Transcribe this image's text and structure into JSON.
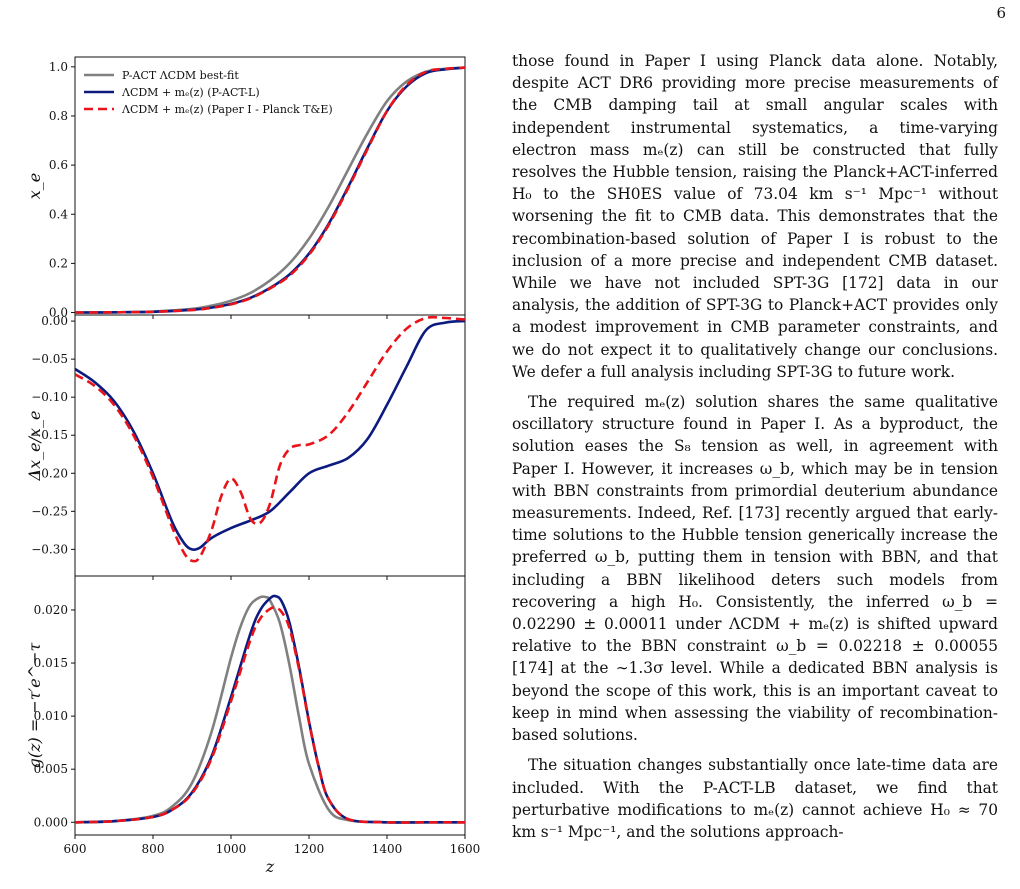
{
  "page_number": "6",
  "figure": {
    "legend": [
      {
        "label": "P-ACT ΛCDM best-fit",
        "color": "#808080",
        "dash": "solid"
      },
      {
        "label": "ΛCDM + mₑ(z) (P-ACT-L)",
        "color": "#0d1a80",
        "dash": "solid"
      },
      {
        "label": "ΛCDM + mₑ(z) (Paper I - Planck T&E)",
        "color": "#e8141a",
        "dash": "dashed"
      }
    ],
    "x_label": "z",
    "panels": [
      {
        "ylabel": "x_e",
        "ylim": [
          -0.01,
          1.04
        ],
        "yticks": [
          "0.0",
          "0.2",
          "0.4",
          "0.6",
          "0.8",
          "1.0"
        ],
        "ytick_values": [
          0,
          0.2,
          0.4,
          0.6,
          0.8,
          1.0
        ]
      },
      {
        "ylabel": "Δx_e/x_e",
        "ylim": [
          -0.335,
          0.008
        ],
        "yticks": [
          "−0.30",
          "−0.25",
          "−0.20",
          "−0.15",
          "−0.10",
          "−0.05",
          "0.00"
        ],
        "ytick_values": [
          -0.3,
          -0.25,
          -0.2,
          -0.15,
          -0.1,
          -0.05,
          0.0
        ]
      },
      {
        "ylabel": "g(z) = −τ′e^−τ",
        "ylim": [
          -0.0012,
          0.0232
        ],
        "yticks": [
          "0.000",
          "0.005",
          "0.010",
          "0.015",
          "0.020"
        ],
        "ytick_values": [
          0,
          0.005,
          0.01,
          0.015,
          0.02
        ]
      }
    ],
    "xticks": [
      "600",
      "800",
      "1000",
      "1200",
      "1400",
      "1600"
    ],
    "xtick_values": [
      600,
      800,
      1000,
      1200,
      1400,
      1600
    ]
  },
  "chart_data": [
    {
      "type": "line",
      "ylabel": "x_e",
      "xlim": [
        600,
        1600
      ],
      "ylim": [
        -0.01,
        1.04
      ],
      "legend_position": "top-left",
      "series": [
        {
          "name": "P-ACT ΛCDM best-fit",
          "color": "#808080",
          "x": [
            600,
            700,
            800,
            900,
            950,
            1000,
            1050,
            1100,
            1150,
            1200,
            1250,
            1300,
            1350,
            1400,
            1450,
            1500,
            1550,
            1600
          ],
          "y": [
            0.0,
            0.001,
            0.004,
            0.015,
            0.028,
            0.048,
            0.08,
            0.13,
            0.2,
            0.3,
            0.43,
            0.58,
            0.73,
            0.86,
            0.94,
            0.98,
            0.992,
            0.997
          ]
        },
        {
          "name": "ΛCDM + mₑ(z) (P-ACT-L)",
          "color": "#0d1a80",
          "x": [
            600,
            700,
            800,
            900,
            950,
            1000,
            1050,
            1100,
            1150,
            1200,
            1250,
            1300,
            1350,
            1400,
            1450,
            1500,
            1550,
            1600
          ],
          "y": [
            0.0,
            0.0008,
            0.003,
            0.011,
            0.02,
            0.035,
            0.06,
            0.1,
            0.155,
            0.24,
            0.36,
            0.51,
            0.67,
            0.82,
            0.92,
            0.975,
            0.99,
            0.997
          ]
        },
        {
          "name": "ΛCDM + mₑ(z) (Paper I - Planck T&E)",
          "color": "#e8141a",
          "x": [
            600,
            700,
            800,
            900,
            950,
            1000,
            1050,
            1100,
            1150,
            1200,
            1250,
            1300,
            1350,
            1400,
            1450,
            1500,
            1550,
            1600
          ],
          "y": [
            0.0,
            0.0008,
            0.003,
            0.01,
            0.019,
            0.033,
            0.058,
            0.098,
            0.15,
            0.235,
            0.355,
            0.505,
            0.665,
            0.82,
            0.925,
            0.98,
            0.992,
            0.997
          ]
        }
      ]
    },
    {
      "type": "line",
      "ylabel": "Δx_e/x_e",
      "xlim": [
        600,
        1600
      ],
      "ylim": [
        -0.335,
        0.008
      ],
      "series": [
        {
          "name": "ΛCDM + mₑ(z) (P-ACT-L)",
          "color": "#0d1a80",
          "x": [
            600,
            650,
            700,
            750,
            800,
            850,
            880,
            900,
            920,
            950,
            1000,
            1050,
            1100,
            1150,
            1200,
            1250,
            1300,
            1350,
            1400,
            1450,
            1500,
            1550,
            1600
          ],
          "y": [
            -0.063,
            -0.08,
            -0.105,
            -0.145,
            -0.2,
            -0.265,
            -0.292,
            -0.3,
            -0.298,
            -0.285,
            -0.272,
            -0.262,
            -0.25,
            -0.225,
            -0.2,
            -0.19,
            -0.18,
            -0.155,
            -0.11,
            -0.06,
            -0.012,
            -0.002,
            0.0
          ]
        },
        {
          "name": "ΛCDM + mₑ(z) (Paper I - Planck T&E)",
          "color": "#e8141a",
          "x": [
            600,
            650,
            700,
            750,
            800,
            850,
            880,
            900,
            920,
            950,
            975,
            1000,
            1025,
            1050,
            1075,
            1100,
            1125,
            1150,
            1175,
            1200,
            1250,
            1300,
            1350,
            1400,
            1450,
            1500,
            1550,
            1600
          ],
          "y": [
            -0.07,
            -0.085,
            -0.11,
            -0.15,
            -0.205,
            -0.272,
            -0.305,
            -0.315,
            -0.31,
            -0.275,
            -0.23,
            -0.207,
            -0.225,
            -0.26,
            -0.265,
            -0.24,
            -0.19,
            -0.168,
            -0.163,
            -0.162,
            -0.15,
            -0.12,
            -0.08,
            -0.04,
            -0.01,
            0.004,
            0.004,
            0.002
          ]
        }
      ]
    },
    {
      "type": "line",
      "ylabel": "g(z) = −τ′e^−τ",
      "xlabel": "z",
      "xlim": [
        600,
        1600
      ],
      "ylim": [
        -0.0012,
        0.0232
      ],
      "series": [
        {
          "name": "P-ACT ΛCDM best-fit",
          "color": "#808080",
          "x": [
            600,
            700,
            800,
            850,
            900,
            950,
            1000,
            1025,
            1050,
            1075,
            1090,
            1100,
            1125,
            1150,
            1175,
            1200,
            1250,
            1300,
            1400,
            1500,
            1600
          ],
          "y": [
            0.0,
            0.0001,
            0.0006,
            0.0015,
            0.0037,
            0.0085,
            0.0155,
            0.0185,
            0.0205,
            0.0212,
            0.0212,
            0.0209,
            0.0188,
            0.0148,
            0.0098,
            0.0055,
            0.0012,
            0.0002,
            0.0,
            0.0,
            0.0
          ]
        },
        {
          "name": "ΛCDM + mₑ(z) (P-ACT-L)",
          "color": "#0d1a80",
          "x": [
            600,
            700,
            800,
            850,
            900,
            950,
            1000,
            1050,
            1075,
            1100,
            1115,
            1130,
            1150,
            1175,
            1200,
            1225,
            1250,
            1300,
            1400,
            1500,
            1600
          ],
          "y": [
            0.0,
            0.0001,
            0.0005,
            0.0012,
            0.0028,
            0.0062,
            0.0118,
            0.0178,
            0.02,
            0.0211,
            0.0213,
            0.0208,
            0.0188,
            0.0145,
            0.0095,
            0.0052,
            0.0022,
            0.0003,
            0.0,
            0.0,
            0.0
          ]
        },
        {
          "name": "ΛCDM + mₑ(z) (Paper I - Planck T&E)",
          "color": "#e8141a",
          "x": [
            600,
            700,
            800,
            850,
            900,
            950,
            1000,
            1050,
            1075,
            1100,
            1115,
            1130,
            1150,
            1175,
            1200,
            1225,
            1250,
            1300,
            1400,
            1500,
            1600
          ],
          "y": [
            0.0,
            0.0001,
            0.0005,
            0.0012,
            0.0027,
            0.006,
            0.0114,
            0.0172,
            0.0192,
            0.0201,
            0.0202,
            0.0198,
            0.0183,
            0.0143,
            0.0094,
            0.0052,
            0.0022,
            0.0003,
            0.0,
            0.0,
            0.0
          ]
        }
      ]
    }
  ],
  "text": {
    "p1": "those found in Paper I using Planck data alone. Notably, despite ACT DR6 providing more precise measurements of the CMB damping tail at small angular scales with independent instrumental systematics, a time-varying electron mass mₑ(z) can still be constructed that fully resolves the Hubble tension, raising the Planck+ACT-inferred H₀ to the SH0ES value of 73.04 km s⁻¹ Mpc⁻¹ without worsening the fit to CMB data. This demonstrates that the recombination-based solution of Paper I is robust to the inclusion of a more precise and independent CMB dataset. While we have not included SPT-3G [172] data in our analysis, the addition of SPT-3G to Planck+ACT provides only a modest improvement in CMB parameter constraints, and we do not expect it to qualitatively change our conclusions. We defer a full analysis including SPT-3G to future work.",
    "p2": "The required mₑ(z) solution shares the same qualitative oscillatory structure found in Paper I. As a byproduct, the solution eases the S₈ tension as well, in agreement with Paper I. However, it increases ω_b, which may be in tension with BBN constraints from primordial deuterium abundance measurements. Indeed, Ref. [173] recently argued that early-time solutions to the Hubble tension generically increase the preferred ω_b, putting them in tension with BBN, and that including a BBN likelihood deters such models from recovering a high H₀. Consistently, the inferred ω_b = 0.02290 ± 0.00011 under ΛCDM + mₑ(z) is shifted upward relative to the BBN constraint ω_b = 0.02218 ± 0.00055 [174] at the ∼1.3σ level. While a dedicated BBN analysis is beyond the scope of this work, this is an important caveat to keep in mind when assessing the viability of recombination-based solutions.",
    "p3": "The situation changes substantially once late-time data are included. With the P-ACT-LB dataset, we find that perturbative modifications to mₑ(z) cannot achieve H₀ ≈ 70 km s⁻¹ Mpc⁻¹, and the solutions approach-"
  }
}
